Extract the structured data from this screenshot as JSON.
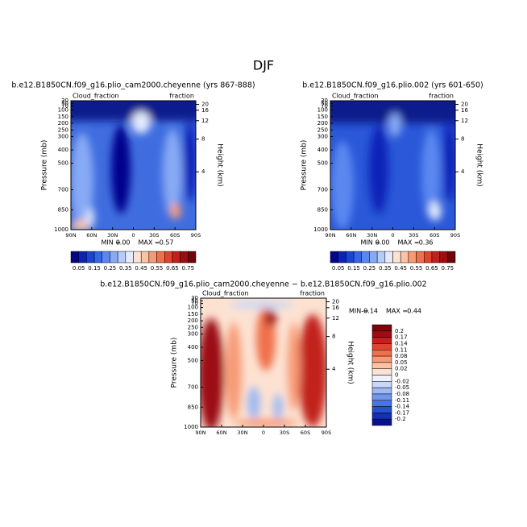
{
  "title": "DJF",
  "panels": [
    {
      "title": "b.e12.B1850CN.f09_g16.plio_cam2000.cheyenne (yrs 867-888)",
      "left_label": "Cloud_fraction",
      "right_label": "fraction",
      "ylabel": "Pressure (mb)",
      "y2label": "Height (km)",
      "min_label": "MIN =",
      "min": "0.00",
      "max_label": "MAX =",
      "max": "0.57"
    },
    {
      "title": "b.e12.B1850CN.f09_g16.plio.002 (yrs 601-650)",
      "left_label": "Cloud_fraction",
      "right_label": "fraction",
      "ylabel": "Pressure (mb)",
      "y2label": "Height (km)",
      "min_label": "MIN =",
      "min": "0.00",
      "max_label": "MAX =",
      "max": "0.36"
    },
    {
      "title": "b.e12.B1850CN.f09_g16.plio_cam2000.cheyenne − b.e12.B1850CN.f09_g16.plio.002",
      "left_label": "Cloud_fraction",
      "right_label": "fraction",
      "ylabel": "Pressure (mb)",
      "y2label": "Height (km)",
      "min_label": "MIN =",
      "min": "-0.14",
      "max_label": "MAX =",
      "max": "0.44"
    }
  ],
  "pressure_ticks": [
    1000,
    850,
    700,
    500,
    400,
    300,
    250,
    200,
    150,
    100,
    70,
    50,
    30
  ],
  "height_ticks": [
    4,
    8,
    12,
    16,
    20
  ],
  "lat_ticks": [
    {
      "value": 90,
      "label": "90N"
    },
    {
      "value": 60,
      "label": "60N"
    },
    {
      "value": 30,
      "label": "30N"
    },
    {
      "value": 0,
      "label": "0"
    },
    {
      "value": -30,
      "label": "30S"
    },
    {
      "value": -60,
      "label": "60S"
    },
    {
      "value": -90,
      "label": "90S"
    }
  ],
  "colorbar": {
    "labels": [
      "0.05",
      "0.15",
      "0.25",
      "0.35",
      "0.45",
      "0.55",
      "0.65",
      "0.75"
    ],
    "colors": [
      "#03058c",
      "#0a22b8",
      "#1845d8",
      "#3565e8",
      "#5a88f0",
      "#88aaf5",
      "#b5cbf8",
      "#e2eafc",
      "#fde2d2",
      "#fbc2a4",
      "#f79a74",
      "#f06f4c",
      "#e04430",
      "#c2201d",
      "#9c0d12",
      "#6e0508"
    ]
  },
  "diff_colorbar": {
    "labels": [
      "0.2",
      "0.17",
      "0.14",
      "0.11",
      "0.08",
      "0.05",
      "0.02",
      "0",
      "-0.02",
      "-0.05",
      "-0.08",
      "-0.11",
      "-0.14",
      "-0.17",
      "-0.2"
    ],
    "colors": [
      "#7a0406",
      "#9c0d12",
      "#c2201d",
      "#e04430",
      "#f06f4c",
      "#f79a74",
      "#fbc2a4",
      "#fde2d2",
      "#eef2fd",
      "#c8d8f8",
      "#9db9f3",
      "#7097ec",
      "#4a74e2",
      "#2850cc",
      "#1230b0",
      "#06128c"
    ]
  }
}
